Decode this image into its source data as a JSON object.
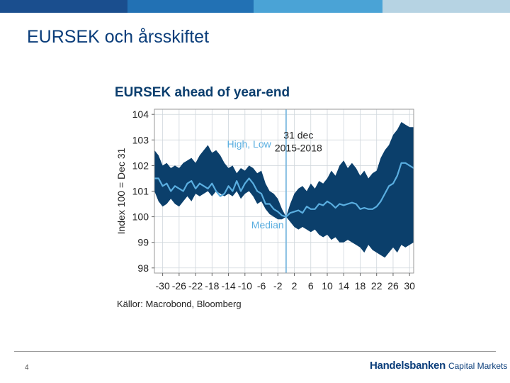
{
  "header": {
    "bar_colors": [
      "#1a4e8e",
      "#2271b4",
      "#4aa3d6",
      "#b6d3e3"
    ]
  },
  "slide": {
    "title": "EURSEK och årsskiftet",
    "page_number": "4"
  },
  "footer": {
    "brand": "Handelsbanken",
    "brand_sub": "Capital Markets"
  },
  "colors": {
    "band": "#0b3f6b",
    "median": "#5aaee0",
    "marker": "#7ab8df",
    "title": "#0a3d7a"
  },
  "chart_data": {
    "type": "area",
    "title": "EURSEK ahead of year-end",
    "ylabel": "Index 100 = Dec 31",
    "xlabel": "",
    "source": "Källor: Macrobond, Bloomberg",
    "xlim": [
      -32,
      31
    ],
    "ylim": [
      97.8,
      104.2
    ],
    "yticks": [
      98,
      99,
      100,
      101,
      102,
      103,
      104
    ],
    "xticks": [
      -30,
      -26,
      -22,
      -18,
      -14,
      -10,
      -6,
      -2,
      2,
      6,
      10,
      14,
      18,
      22,
      26,
      30
    ],
    "grid": true,
    "annotations": [
      {
        "text": "High, Low",
        "x": -9,
        "y": 102.7
      },
      {
        "text": "31 dec",
        "x": 3,
        "y": 103.05
      },
      {
        "text": "2015-2018",
        "x": 3,
        "y": 102.55
      },
      {
        "text": "Median",
        "x": -4.5,
        "y": 99.55
      }
    ],
    "vline": {
      "x": 0
    },
    "series": [
      {
        "name": "High",
        "x": [
          -32,
          -31,
          -30,
          -29,
          -28,
          -27,
          -26,
          -25,
          -24,
          -23,
          -22,
          -21,
          -20,
          -19,
          -18,
          -17,
          -16,
          -15,
          -14,
          -13,
          -12,
          -11,
          -10,
          -9,
          -8,
          -7,
          -6,
          -5,
          -4,
          -3,
          -2,
          -1,
          0,
          1,
          2,
          3,
          4,
          5,
          6,
          7,
          8,
          9,
          10,
          11,
          12,
          13,
          14,
          15,
          16,
          17,
          18,
          19,
          20,
          21,
          22,
          23,
          24,
          25,
          26,
          27,
          28,
          29,
          30,
          31
        ],
        "values": [
          102.6,
          102.4,
          102.0,
          102.1,
          101.9,
          102.0,
          101.9,
          102.1,
          102.2,
          102.3,
          102.1,
          102.4,
          102.6,
          102.8,
          102.5,
          102.6,
          102.4,
          102.1,
          101.9,
          102.0,
          101.7,
          101.9,
          101.8,
          102.0,
          101.9,
          101.7,
          101.8,
          101.3,
          101.0,
          100.9,
          100.7,
          100.3,
          100.0,
          100.5,
          100.9,
          101.1,
          101.2,
          101.0,
          101.3,
          101.1,
          101.4,
          101.3,
          101.5,
          101.8,
          101.6,
          102.0,
          102.2,
          101.9,
          102.1,
          101.9,
          101.6,
          101.8,
          101.5,
          101.7,
          101.8,
          102.3,
          102.6,
          102.8,
          103.2,
          103.4,
          103.7,
          103.6,
          103.5,
          103.5
        ]
      },
      {
        "name": "Low",
        "x": [
          -32,
          -31,
          -30,
          -29,
          -28,
          -27,
          -26,
          -25,
          -24,
          -23,
          -22,
          -21,
          -20,
          -19,
          -18,
          -17,
          -16,
          -15,
          -14,
          -13,
          -12,
          -11,
          -10,
          -9,
          -8,
          -7,
          -6,
          -5,
          -4,
          -3,
          -2,
          -1,
          0,
          1,
          2,
          3,
          4,
          5,
          6,
          7,
          8,
          9,
          10,
          11,
          12,
          13,
          14,
          15,
          16,
          17,
          18,
          19,
          20,
          21,
          22,
          23,
          24,
          25,
          26,
          27,
          28,
          29,
          30,
          31
        ],
        "values": [
          101.0,
          100.6,
          100.4,
          100.5,
          100.7,
          100.5,
          100.4,
          100.6,
          100.8,
          100.6,
          100.9,
          100.8,
          100.9,
          101.0,
          100.8,
          101.0,
          100.9,
          100.8,
          100.9,
          100.8,
          101.0,
          100.7,
          100.9,
          101.0,
          100.8,
          100.5,
          100.6,
          100.3,
          100.1,
          100.0,
          99.9,
          99.9,
          100.0,
          99.8,
          99.6,
          99.5,
          99.6,
          99.5,
          99.4,
          99.5,
          99.3,
          99.2,
          99.3,
          99.1,
          99.2,
          99.0,
          99.0,
          99.1,
          99.0,
          98.9,
          98.8,
          98.6,
          98.9,
          98.7,
          98.6,
          98.5,
          98.4,
          98.6,
          98.8,
          98.6,
          98.9,
          98.8,
          98.9,
          99.0
        ]
      },
      {
        "name": "Median",
        "x": [
          -32,
          -31,
          -30,
          -29,
          -28,
          -27,
          -26,
          -25,
          -24,
          -23,
          -22,
          -21,
          -20,
          -19,
          -18,
          -17,
          -16,
          -15,
          -14,
          -13,
          -12,
          -11,
          -10,
          -9,
          -8,
          -7,
          -6,
          -5,
          -4,
          -3,
          -2,
          -1,
          0,
          1,
          2,
          3,
          4,
          5,
          6,
          7,
          8,
          9,
          10,
          11,
          12,
          13,
          14,
          15,
          16,
          17,
          18,
          19,
          20,
          21,
          22,
          23,
          24,
          25,
          26,
          27,
          28,
          29,
          30,
          31
        ],
        "values": [
          101.5,
          101.5,
          101.2,
          101.3,
          101.0,
          101.2,
          101.1,
          101.0,
          101.3,
          101.4,
          101.1,
          101.3,
          101.2,
          101.1,
          101.3,
          101.0,
          100.8,
          100.9,
          101.2,
          101.0,
          101.4,
          101.0,
          101.3,
          101.5,
          101.3,
          101.0,
          100.9,
          100.5,
          100.5,
          100.3,
          100.2,
          100.05,
          100.0,
          100.15,
          100.2,
          100.25,
          100.15,
          100.4,
          100.3,
          100.3,
          100.5,
          100.45,
          100.6,
          100.5,
          100.35,
          100.5,
          100.45,
          100.5,
          100.55,
          100.5,
          100.3,
          100.35,
          100.3,
          100.3,
          100.4,
          100.6,
          100.9,
          101.2,
          101.3,
          101.6,
          102.1,
          102.1,
          102.0,
          101.9
        ]
      }
    ]
  }
}
